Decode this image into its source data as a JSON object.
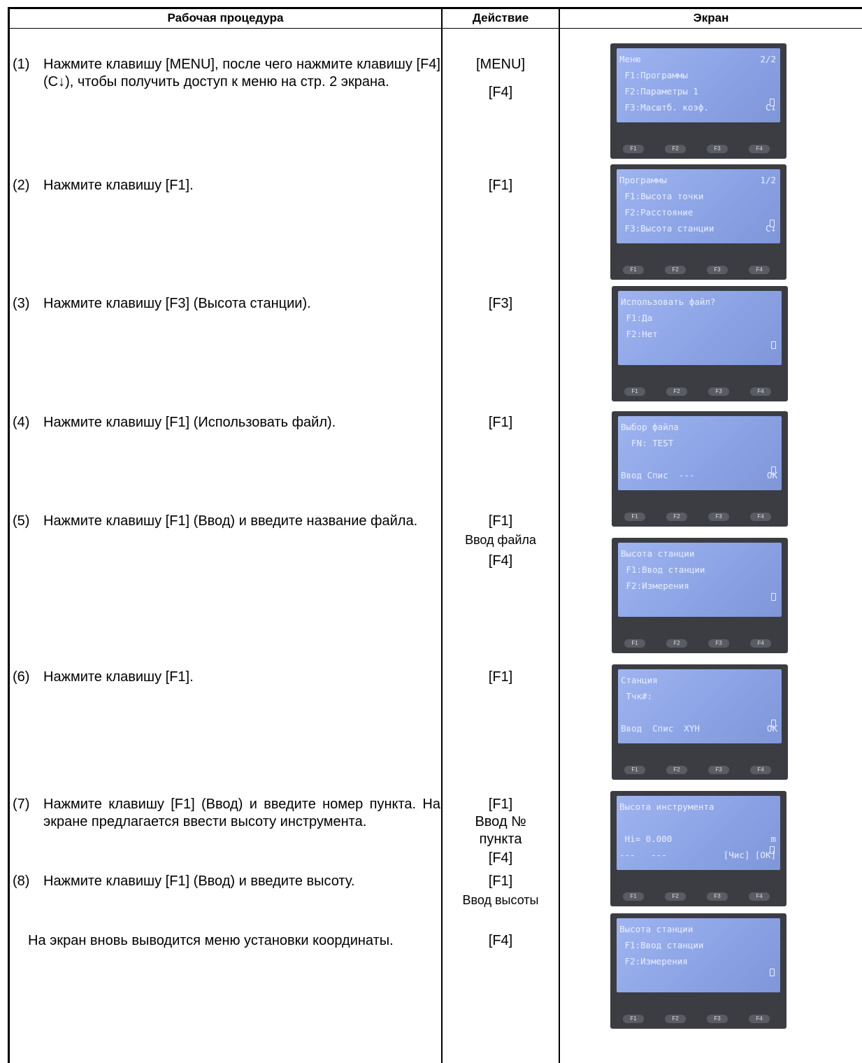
{
  "header": {
    "col1": "Рабочая процедура",
    "col2": "Действие",
    "col3": "Экран"
  },
  "steps": [
    {
      "num": "(1)",
      "text": "Нажмите клавишу [MENU], после чего нажмите клавишу [F4] (C↓), чтобы получить доступ к меню на стр. 2 экрана.",
      "actions": [
        "[MENU]",
        "[F4]"
      ]
    },
    {
      "num": "(2)",
      "text": "Нажмите клавишу [F1].",
      "actions": [
        "[F1]"
      ]
    },
    {
      "num": "(3)",
      "text": "Нажмите клавишу [F3] (Высота станции).",
      "actions": [
        "[F3]"
      ]
    },
    {
      "num": "(4)",
      "text": "Нажмите клавишу [F1] (Использовать файл).",
      "actions": [
        "[F1]"
      ]
    },
    {
      "num": "(5)",
      "text": "Нажмите клавишу [F1] (Ввод) и введите название файла.",
      "actions": [
        "[F1]",
        "Ввод файла",
        "[F4]"
      ]
    },
    {
      "num": "(6)",
      "text": "Нажмите клавишу [F1].",
      "actions": [
        "[F1]"
      ]
    },
    {
      "num": "(7)",
      "text": "Нажмите клавишу [F1] (Ввод) и введите номер пункта. На экране предлагается ввести высоту инструмента.",
      "actions": [
        "[F1]",
        "Ввод №",
        "пункта",
        "[F4]"
      ]
    },
    {
      "num": "(8)",
      "text": "Нажмите клавишу [F1] (Ввод) и введите высоту.",
      "actions": [
        "[F1]",
        "Ввод высоты"
      ]
    }
  ],
  "note": {
    "text": "На экран вновь выводится меню установки координаты.",
    "actions": [
      "[F4]"
    ]
  },
  "softkeys": [
    "F1",
    "F2",
    "F3",
    "F4"
  ],
  "screens": [
    {
      "lines": [
        {
          "text": "Меню",
          "right": "2/2"
        },
        {
          "text": " F1:Программы"
        },
        {
          "text": " F2:Параметры 1"
        },
        {
          "text": " F3:Масштб. коэф.",
          "right": "C↓"
        }
      ]
    },
    {
      "lines": [
        {
          "text": "Программы",
          "right": "1/2"
        },
        {
          "text": " F1:Высота точки"
        },
        {
          "text": " F2:Расстояние"
        },
        {
          "text": " F3:Высота станции",
          "right": "C↓"
        }
      ]
    },
    {
      "lines": [
        {
          "text": "Использовать файл?"
        },
        {
          "text": " F1:Да"
        },
        {
          "text": " F2:Нет"
        },
        null
      ]
    },
    {
      "lines": [
        {
          "text": "Выбор файла"
        },
        {
          "text": "  FN: TEST"
        },
        null,
        {
          "text": "Ввод Спис  ---",
          "right": "OK"
        }
      ]
    },
    {
      "lines": [
        {
          "text": "Высота станции"
        },
        {
          "text": " F1:Ввод станции"
        },
        {
          "text": " F2:Измерения"
        },
        null
      ]
    },
    {
      "lines": [
        {
          "text": "Станция"
        },
        {
          "text": " Тчк#:"
        },
        null,
        {
          "text": "Ввод  Спис  XYH",
          "right": "OK"
        }
      ]
    },
    {
      "lines": [
        {
          "text": "Высота инструмента"
        },
        null,
        {
          "text": " Hi= 0.000",
          "right": "m"
        },
        {
          "text": "---   ---",
          "right": "[Чис] [OK]"
        }
      ]
    },
    {
      "lines": [
        {
          "text": "Высота станции"
        },
        {
          "text": " F1:Ввод станции"
        },
        {
          "text": " F2:Измерения"
        },
        null
      ]
    }
  ]
}
